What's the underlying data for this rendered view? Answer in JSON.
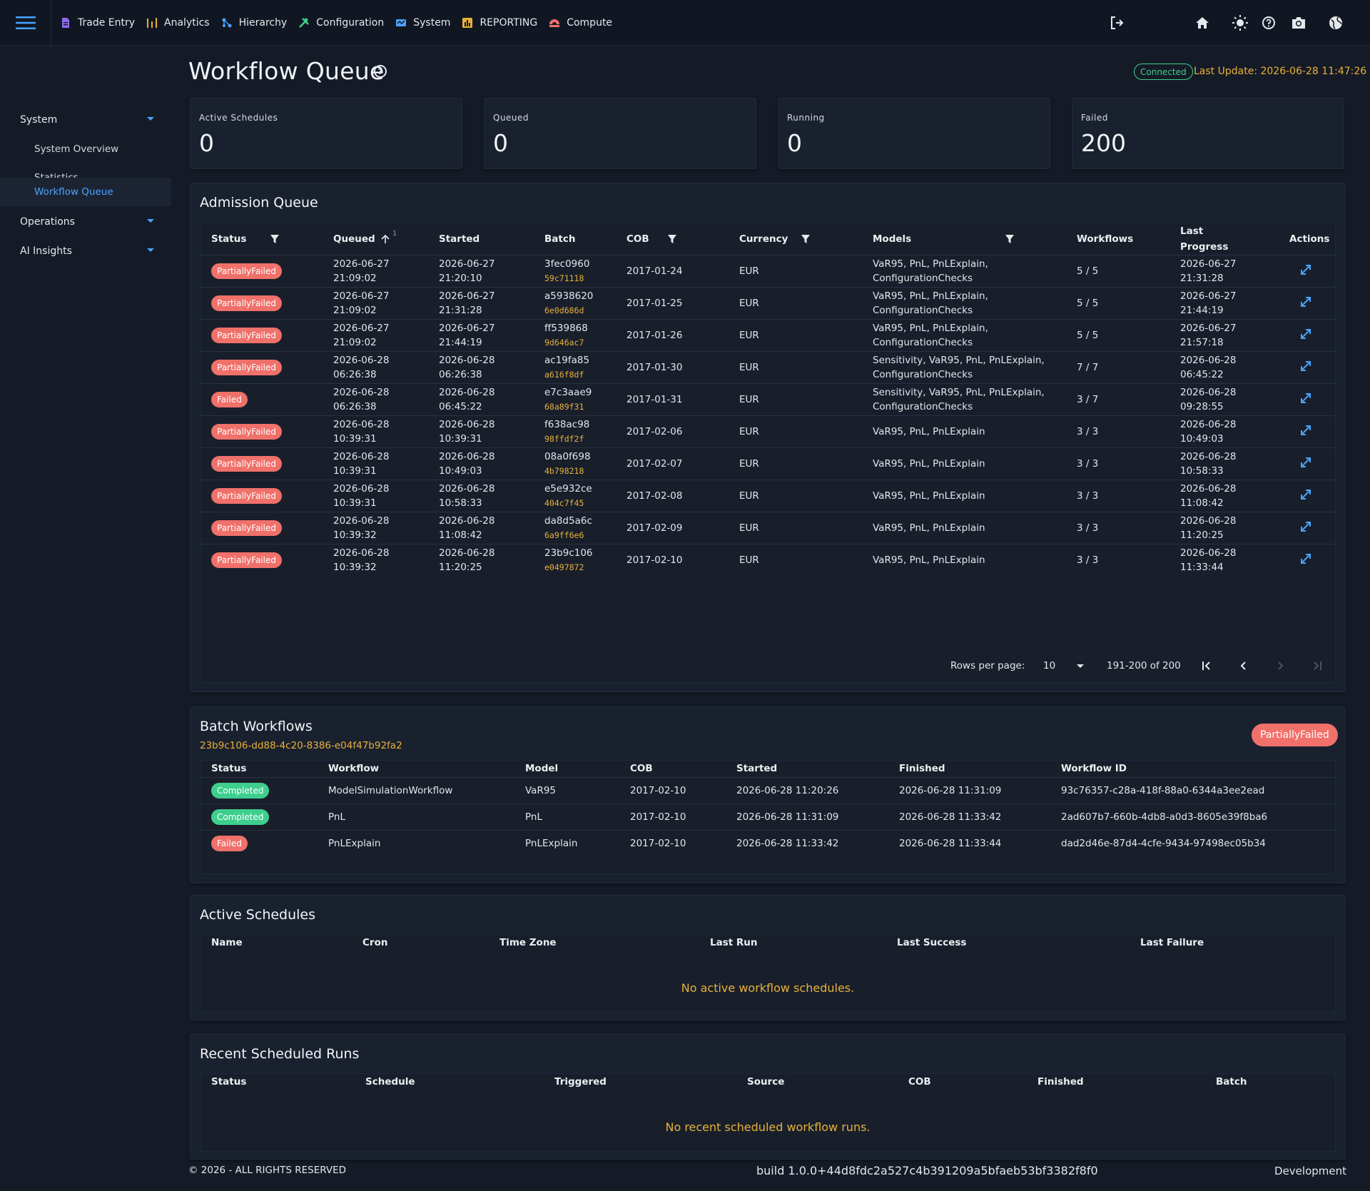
{
  "nav": {
    "items": [
      {
        "label": "Trade Entry",
        "icon": "document-icon",
        "color": "#8f6bf0"
      },
      {
        "label": "Analytics",
        "icon": "bar-chart-icon",
        "color": "#e8b13a"
      },
      {
        "label": "Hierarchy",
        "icon": "hierarchy-icon",
        "color": "#4aa3ff"
      },
      {
        "label": "Configuration",
        "icon": "tools-icon",
        "color": "#3ecf8e"
      },
      {
        "label": "System",
        "icon": "system-icon",
        "color": "#4aa3ff"
      },
      {
        "label": "REPORTING",
        "icon": "report-icon",
        "color": "#e8b13a"
      },
      {
        "label": "Compute",
        "icon": "compute-icon",
        "color": "#f0706a"
      }
    ]
  },
  "sidebar": {
    "groups": [
      {
        "label": "System",
        "items": [
          {
            "label": "System Overview"
          },
          {
            "label": "Statistics"
          },
          {
            "label": "Workflow Queue",
            "active": true
          }
        ]
      },
      {
        "label": "Operations"
      },
      {
        "label": "AI Insights"
      }
    ]
  },
  "header": {
    "title": "Workflow Queue",
    "connection": "Connected",
    "last_update": "Last Update: 2026-06-28 11:47:26"
  },
  "stats": [
    {
      "label": "Active Schedules",
      "value": "0"
    },
    {
      "label": "Queued",
      "value": "0"
    },
    {
      "label": "Running",
      "value": "0"
    },
    {
      "label": "Failed",
      "value": "200"
    }
  ],
  "admission": {
    "title": "Admission Queue",
    "columns": [
      "Status",
      "Queued",
      "Started",
      "Batch",
      "COB",
      "Currency",
      "Models",
      "Workflows",
      "Last Progress",
      "Actions"
    ],
    "sort_index": "1",
    "rows": [
      {
        "status": "PartiallyFailed",
        "queued": [
          "2026-06-27",
          "21:09:02"
        ],
        "started": [
          "2026-06-27",
          "21:20:10"
        ],
        "batch": "3fec0960",
        "batch_sub": "59c71118",
        "cob": "2017-01-24",
        "currency": "EUR",
        "models": [
          "VaR95, PnL, PnLExplain,",
          "ConfigurationChecks"
        ],
        "workflows": "5 / 5",
        "last": [
          "2026-06-27",
          "21:31:28"
        ]
      },
      {
        "status": "PartiallyFailed",
        "queued": [
          "2026-06-27",
          "21:09:02"
        ],
        "started": [
          "2026-06-27",
          "21:31:28"
        ],
        "batch": "a5938620",
        "batch_sub": "6e0d686d",
        "cob": "2017-01-25",
        "currency": "EUR",
        "models": [
          "VaR95, PnL, PnLExplain,",
          "ConfigurationChecks"
        ],
        "workflows": "5 / 5",
        "last": [
          "2026-06-27",
          "21:44:19"
        ]
      },
      {
        "status": "PartiallyFailed",
        "queued": [
          "2026-06-27",
          "21:09:02"
        ],
        "started": [
          "2026-06-27",
          "21:44:19"
        ],
        "batch": "ff539868",
        "batch_sub": "9d646ac7",
        "cob": "2017-01-26",
        "currency": "EUR",
        "models": [
          "VaR95, PnL, PnLExplain,",
          "ConfigurationChecks"
        ],
        "workflows": "5 / 5",
        "last": [
          "2026-06-27",
          "21:57:18"
        ]
      },
      {
        "status": "PartiallyFailed",
        "queued": [
          "2026-06-28",
          "06:26:38"
        ],
        "started": [
          "2026-06-28",
          "06:26:38"
        ],
        "batch": "ac19fa85",
        "batch_sub": "a616f8df",
        "cob": "2017-01-30",
        "currency": "EUR",
        "models": [
          "Sensitivity, VaR95, PnL, PnLExplain,",
          "ConfigurationChecks"
        ],
        "workflows": "7 / 7",
        "last": [
          "2026-06-28",
          "06:45:22"
        ]
      },
      {
        "status": "Failed",
        "queued": [
          "2026-06-28",
          "06:26:38"
        ],
        "started": [
          "2026-06-28",
          "06:45:22"
        ],
        "batch": "e7c3aae9",
        "batch_sub": "68a89f31",
        "cob": "2017-01-31",
        "currency": "EUR",
        "models": [
          "Sensitivity, VaR95, PnL, PnLExplain,",
          "ConfigurationChecks"
        ],
        "workflows": "3 / 7",
        "last": [
          "2026-06-28",
          "09:28:55"
        ]
      },
      {
        "status": "PartiallyFailed",
        "queued": [
          "2026-06-28",
          "10:39:31"
        ],
        "started": [
          "2026-06-28",
          "10:39:31"
        ],
        "batch": "f638ac98",
        "batch_sub": "98ffdf2f",
        "cob": "2017-02-06",
        "currency": "EUR",
        "models": [
          "VaR95, PnL, PnLExplain"
        ],
        "workflows": "3 / 3",
        "last": [
          "2026-06-28",
          "10:49:03"
        ]
      },
      {
        "status": "PartiallyFailed",
        "queued": [
          "2026-06-28",
          "10:39:31"
        ],
        "started": [
          "2026-06-28",
          "10:49:03"
        ],
        "batch": "08a0f698",
        "batch_sub": "4b798218",
        "cob": "2017-02-07",
        "currency": "EUR",
        "models": [
          "VaR95, PnL, PnLExplain"
        ],
        "workflows": "3 / 3",
        "last": [
          "2026-06-28",
          "10:58:33"
        ]
      },
      {
        "status": "PartiallyFailed",
        "queued": [
          "2026-06-28",
          "10:39:31"
        ],
        "started": [
          "2026-06-28",
          "10:58:33"
        ],
        "batch": "e5e932ce",
        "batch_sub": "404c7f45",
        "cob": "2017-02-08",
        "currency": "EUR",
        "models": [
          "VaR95, PnL, PnLExplain"
        ],
        "workflows": "3 / 3",
        "last": [
          "2026-06-28",
          "11:08:42"
        ]
      },
      {
        "status": "PartiallyFailed",
        "queued": [
          "2026-06-28",
          "10:39:32"
        ],
        "started": [
          "2026-06-28",
          "11:08:42"
        ],
        "batch": "da8d5a6c",
        "batch_sub": "6a9ff6e6",
        "cob": "2017-02-09",
        "currency": "EUR",
        "models": [
          "VaR95, PnL, PnLExplain"
        ],
        "workflows": "3 / 3",
        "last": [
          "2026-06-28",
          "11:20:25"
        ]
      },
      {
        "status": "PartiallyFailed",
        "queued": [
          "2026-06-28",
          "10:39:32"
        ],
        "started": [
          "2026-06-28",
          "11:20:25"
        ],
        "batch": "23b9c106",
        "batch_sub": "e0497872",
        "cob": "2017-02-10",
        "currency": "EUR",
        "models": [
          "VaR95, PnL, PnLExplain"
        ],
        "workflows": "3 / 3",
        "last": [
          "2026-06-28",
          "11:33:44"
        ]
      }
    ],
    "pagination": {
      "rows_per_page_label": "Rows per page:",
      "rows_per_page": "10",
      "range": "191-200 of 200"
    }
  },
  "batch": {
    "title": "Batch Workflows",
    "id": "23b9c106-dd88-4c20-8386-e04f47b92fa2",
    "status": "PartiallyFailed",
    "columns": [
      "Status",
      "Workflow",
      "Model",
      "COB",
      "Started",
      "Finished",
      "Workflow ID"
    ],
    "rows": [
      {
        "status": "Completed",
        "workflow": "ModelSimulationWorkflow",
        "model": "VaR95",
        "cob": "2017-02-10",
        "started": "2026-06-28 11:20:26",
        "finished": "2026-06-28 11:31:09",
        "id": "93c76357-c28a-418f-88a0-6344a3ee2ead"
      },
      {
        "status": "Completed",
        "workflow": "PnL",
        "model": "PnL",
        "cob": "2017-02-10",
        "started": "2026-06-28 11:31:09",
        "finished": "2026-06-28 11:33:42",
        "id": "2ad607b7-660b-4db8-a0d3-8605e39f8ba6"
      },
      {
        "status": "Failed",
        "workflow": "PnLExplain",
        "model": "PnLExplain",
        "cob": "2017-02-10",
        "started": "2026-06-28 11:33:42",
        "finished": "2026-06-28 11:33:44",
        "id": "dad2d46e-87d4-4cfe-9434-97498ec05b34"
      }
    ]
  },
  "schedules": {
    "title": "Active Schedules",
    "columns": [
      "Name",
      "Cron",
      "Time Zone",
      "Last Run",
      "Last Success",
      "Last Failure"
    ],
    "empty": "No active workflow schedules."
  },
  "runs": {
    "title": "Recent Scheduled Runs",
    "columns": [
      "Status",
      "Schedule",
      "Triggered",
      "Source",
      "COB",
      "Finished",
      "Batch"
    ],
    "empty": "No recent scheduled workflow runs."
  },
  "footer": {
    "copyright": "© 2026 - ALL RIGHTS RESERVED",
    "build": "build 1.0.0+44d8fdc2a527c4b391209a5bfaeb53bf3382f8f0",
    "env": "Development"
  },
  "colors": {
    "accent": "#4aa3ff",
    "warning": "#e8b13a",
    "danger": "#f0706a",
    "success": "#3ecf8e"
  }
}
